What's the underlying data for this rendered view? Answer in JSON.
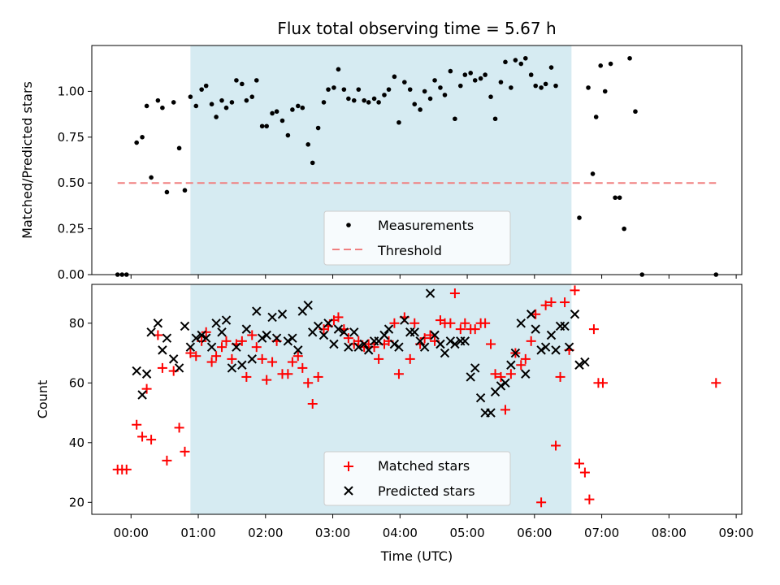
{
  "chart_data": {
    "type": "scatter",
    "title": "Flux total observing time = 5.67 h",
    "xlabel": "Time (UTC)",
    "x_ticks": [
      "00:00",
      "01:00",
      "02:00",
      "03:00",
      "04:00",
      "05:00",
      "06:00",
      "07:00",
      "08:00",
      "09:00"
    ],
    "xlim": [
      "-00:35",
      "09:05"
    ],
    "shaded_span": [
      "00:53",
      "06:33"
    ],
    "shade_color": "#add8e6",
    "top": {
      "ylabel": "Matched/Predicted stars",
      "ylim": [
        0,
        1.25
      ],
      "y_ticks": [
        "0.00",
        "0.25",
        "0.50",
        "0.75",
        "1.00"
      ],
      "legend": [
        "Measurements",
        "Threshold"
      ],
      "threshold": {
        "value": 0.5,
        "x_range": [
          "-00:12",
          "08:42"
        ],
        "color": "#f08080"
      },
      "points": [
        [
          "-00:12",
          0.0
        ],
        [
          "-00:08",
          0.0
        ],
        [
          "-00:04",
          0.0
        ],
        [
          "00:05",
          0.72
        ],
        [
          "00:10",
          0.75
        ],
        [
          "00:14",
          0.92
        ],
        [
          "00:18",
          0.53
        ],
        [
          "00:24",
          0.95
        ],
        [
          "00:28",
          0.91
        ],
        [
          "00:32",
          0.45
        ],
        [
          "00:38",
          0.94
        ],
        [
          "00:43",
          0.69
        ],
        [
          "00:48",
          0.46
        ],
        [
          "00:53",
          0.97
        ],
        [
          "00:58",
          0.92
        ],
        [
          "01:03",
          1.01
        ],
        [
          "01:07",
          1.03
        ],
        [
          "01:12",
          0.93
        ],
        [
          "01:16",
          0.86
        ],
        [
          "01:21",
          0.95
        ],
        [
          "01:25",
          0.91
        ],
        [
          "01:30",
          0.94
        ],
        [
          "01:34",
          1.06
        ],
        [
          "01:39",
          1.04
        ],
        [
          "01:43",
          0.95
        ],
        [
          "01:48",
          0.97
        ],
        [
          "01:52",
          1.06
        ],
        [
          "01:57",
          0.81
        ],
        [
          "02:01",
          0.81
        ],
        [
          "02:06",
          0.88
        ],
        [
          "02:10",
          0.89
        ],
        [
          "02:15",
          0.84
        ],
        [
          "02:20",
          0.76
        ],
        [
          "02:24",
          0.9
        ],
        [
          "02:29",
          0.92
        ],
        [
          "02:33",
          0.91
        ],
        [
          "02:38",
          0.71
        ],
        [
          "02:42",
          0.61
        ],
        [
          "02:47",
          0.8
        ],
        [
          "02:52",
          0.94
        ],
        [
          "02:56",
          1.01
        ],
        [
          "03:01",
          1.02
        ],
        [
          "03:05",
          1.12
        ],
        [
          "03:10",
          1.01
        ],
        [
          "03:14",
          0.96
        ],
        [
          "03:19",
          0.95
        ],
        [
          "03:23",
          1.01
        ],
        [
          "03:28",
          0.95
        ],
        [
          "03:32",
          0.94
        ],
        [
          "03:37",
          0.96
        ],
        [
          "03:41",
          0.94
        ],
        [
          "03:46",
          0.98
        ],
        [
          "03:50",
          1.01
        ],
        [
          "03:55",
          1.08
        ],
        [
          "03:59",
          0.83
        ],
        [
          "04:04",
          1.05
        ],
        [
          "04:09",
          1.01
        ],
        [
          "04:13",
          0.93
        ],
        [
          "04:18",
          0.9
        ],
        [
          "04:22",
          1.0
        ],
        [
          "04:27",
          0.96
        ],
        [
          "04:31",
          1.06
        ],
        [
          "04:36",
          1.02
        ],
        [
          "04:40",
          0.98
        ],
        [
          "04:45",
          1.11
        ],
        [
          "04:49",
          0.85
        ],
        [
          "04:54",
          1.03
        ],
        [
          "04:58",
          1.09
        ],
        [
          "05:03",
          1.1
        ],
        [
          "05:07",
          1.06
        ],
        [
          "05:12",
          1.07
        ],
        [
          "05:16",
          1.09
        ],
        [
          "05:21",
          0.97
        ],
        [
          "05:25",
          0.85
        ],
        [
          "05:30",
          1.05
        ],
        [
          "05:34",
          1.16
        ],
        [
          "05:39",
          1.02
        ],
        [
          "05:43",
          1.17
        ],
        [
          "05:48",
          1.15
        ],
        [
          "05:52",
          1.18
        ],
        [
          "05:57",
          1.09
        ],
        [
          "06:01",
          1.03
        ],
        [
          "06:06",
          1.02
        ],
        [
          "06:10",
          1.04
        ],
        [
          "06:15",
          1.13
        ],
        [
          "06:19",
          1.03
        ],
        [
          "06:40",
          0.31
        ],
        [
          "06:48",
          1.02
        ],
        [
          "06:52",
          0.55
        ],
        [
          "06:55",
          0.86
        ],
        [
          "06:59",
          1.14
        ],
        [
          "07:03",
          1.0
        ],
        [
          "07:08",
          1.15
        ],
        [
          "07:12",
          0.42
        ],
        [
          "07:16",
          0.42
        ],
        [
          "07:20",
          0.25
        ],
        [
          "07:25",
          1.18
        ],
        [
          "07:30",
          0.89
        ],
        [
          "07:36",
          0.0
        ],
        [
          "08:42",
          0.0
        ]
      ]
    },
    "bottom": {
      "ylabel": "Count",
      "ylim": [
        16,
        93
      ],
      "y_ticks": [
        "20",
        "40",
        "60",
        "80"
      ],
      "series": [
        {
          "name": "Matched stars",
          "marker": "+",
          "color": "#ff0000",
          "points": [
            [
              "-00:12",
              31
            ],
            [
              "-00:08",
              31
            ],
            [
              "-00:04",
              31
            ],
            [
              "00:05",
              46
            ],
            [
              "00:10",
              42
            ],
            [
              "00:14",
              58
            ],
            [
              "00:18",
              41
            ],
            [
              "00:24",
              76
            ],
            [
              "00:28",
              65
            ],
            [
              "00:32",
              34
            ],
            [
              "00:38",
              64
            ],
            [
              "00:43",
              45
            ],
            [
              "00:48",
              37
            ],
            [
              "00:53",
              70
            ],
            [
              "00:58",
              69
            ],
            [
              "01:03",
              74
            ],
            [
              "01:07",
              77
            ],
            [
              "01:12",
              67
            ],
            [
              "01:16",
              69
            ],
            [
              "01:21",
              72
            ],
            [
              "01:25",
              74
            ],
            [
              "01:30",
              68
            ],
            [
              "01:34",
              73
            ],
            [
              "01:39",
              74
            ],
            [
              "01:43",
              62
            ],
            [
              "01:48",
              76
            ],
            [
              "01:52",
              72
            ],
            [
              "01:57",
              68
            ],
            [
              "02:01",
              61
            ],
            [
              "02:06",
              67
            ],
            [
              "02:10",
              74
            ],
            [
              "02:15",
              63
            ],
            [
              "02:20",
              63
            ],
            [
              "02:24",
              67
            ],
            [
              "02:29",
              69
            ],
            [
              "02:33",
              65
            ],
            [
              "02:38",
              60
            ],
            [
              "02:42",
              53
            ],
            [
              "02:47",
              62
            ],
            [
              "02:52",
              78
            ],
            [
              "02:56",
              79
            ],
            [
              "03:01",
              81
            ],
            [
              "03:05",
              82
            ],
            [
              "03:10",
              78
            ],
            [
              "03:14",
              75
            ],
            [
              "03:19",
              73
            ],
            [
              "03:23",
              74
            ],
            [
              "03:28",
              72
            ],
            [
              "03:32",
              73
            ],
            [
              "03:37",
              72
            ],
            [
              "03:41",
              68
            ],
            [
              "03:46",
              73
            ],
            [
              "03:50",
              74
            ],
            [
              "03:55",
              80
            ],
            [
              "03:59",
              63
            ],
            [
              "04:04",
              82
            ],
            [
              "04:09",
              68
            ],
            [
              "04:13",
              80
            ],
            [
              "04:18",
              73
            ],
            [
              "04:22",
              75
            ],
            [
              "04:27",
              76
            ],
            [
              "04:31",
              74
            ],
            [
              "04:36",
              81
            ],
            [
              "04:40",
              80
            ],
            [
              "04:45",
              80
            ],
            [
              "04:49",
              90
            ],
            [
              "04:54",
              78
            ],
            [
              "04:58",
              80
            ],
            [
              "05:03",
              78
            ],
            [
              "05:07",
              78
            ],
            [
              "05:12",
              80
            ],
            [
              "05:16",
              80
            ],
            [
              "05:21",
              73
            ],
            [
              "05:25",
              63
            ],
            [
              "05:30",
              62
            ],
            [
              "05:34",
              51
            ],
            [
              "05:39",
              63
            ],
            [
              "05:43",
              70
            ],
            [
              "05:48",
              66
            ],
            [
              "05:52",
              68
            ],
            [
              "05:57",
              74
            ],
            [
              "06:01",
              83
            ],
            [
              "06:06",
              20
            ],
            [
              "06:10",
              86
            ],
            [
              "06:15",
              87
            ],
            [
              "06:19",
              39
            ],
            [
              "06:23",
              62
            ],
            [
              "06:27",
              87
            ],
            [
              "06:31",
              71
            ],
            [
              "06:36",
              91
            ],
            [
              "06:40",
              33
            ],
            [
              "06:45",
              30
            ],
            [
              "06:49",
              21
            ],
            [
              "06:53",
              78
            ],
            [
              "06:57",
              60
            ],
            [
              "07:01",
              60
            ],
            [
              "08:42",
              60
            ]
          ]
        },
        {
          "name": "Predicted stars",
          "marker": "x",
          "color": "#000000",
          "points": [
            [
              "00:05",
              64
            ],
            [
              "00:10",
              56
            ],
            [
              "00:14",
              63
            ],
            [
              "00:18",
              77
            ],
            [
              "00:24",
              80
            ],
            [
              "00:28",
              71
            ],
            [
              "00:32",
              75
            ],
            [
              "00:38",
              68
            ],
            [
              "00:43",
              65
            ],
            [
              "00:48",
              79
            ],
            [
              "00:53",
              72
            ],
            [
              "00:58",
              75
            ],
            [
              "01:03",
              76
            ],
            [
              "01:07",
              75
            ],
            [
              "01:12",
              72
            ],
            [
              "01:16",
              80
            ],
            [
              "01:21",
              77
            ],
            [
              "01:25",
              81
            ],
            [
              "01:30",
              65
            ],
            [
              "01:34",
              72
            ],
            [
              "01:39",
              66
            ],
            [
              "01:43",
              78
            ],
            [
              "01:48",
              68
            ],
            [
              "01:52",
              84
            ],
            [
              "01:57",
              75
            ],
            [
              "02:01",
              76
            ],
            [
              "02:06",
              82
            ],
            [
              "02:10",
              75
            ],
            [
              "02:15",
              83
            ],
            [
              "02:20",
              74
            ],
            [
              "02:24",
              75
            ],
            [
              "02:29",
              71
            ],
            [
              "02:33",
              84
            ],
            [
              "02:38",
              86
            ],
            [
              "02:42",
              77
            ],
            [
              "02:47",
              79
            ],
            [
              "02:52",
              76
            ],
            [
              "02:56",
              80
            ],
            [
              "03:01",
              73
            ],
            [
              "03:05",
              78
            ],
            [
              "03:10",
              77
            ],
            [
              "03:14",
              72
            ],
            [
              "03:19",
              77
            ],
            [
              "03:23",
              72
            ],
            [
              "03:28",
              73
            ],
            [
              "03:32",
              71
            ],
            [
              "03:37",
              74
            ],
            [
              "03:41",
              74
            ],
            [
              "03:46",
              76
            ],
            [
              "03:50",
              78
            ],
            [
              "03:55",
              73
            ],
            [
              "03:59",
              72
            ],
            [
              "04:04",
              81
            ],
            [
              "04:09",
              77
            ],
            [
              "04:13",
              77
            ],
            [
              "04:18",
              74
            ],
            [
              "04:22",
              72
            ],
            [
              "04:27",
              90
            ],
            [
              "04:31",
              76
            ],
            [
              "04:36",
              73
            ],
            [
              "04:40",
              70
            ],
            [
              "04:45",
              74
            ],
            [
              "04:49",
              73
            ],
            [
              "04:54",
              74
            ],
            [
              "04:58",
              74
            ],
            [
              "05:03",
              62
            ],
            [
              "05:07",
              65
            ],
            [
              "05:12",
              55
            ],
            [
              "05:16",
              50
            ],
            [
              "05:21",
              50
            ],
            [
              "05:25",
              57
            ],
            [
              "05:30",
              59
            ],
            [
              "05:34",
              60
            ],
            [
              "05:39",
              66
            ],
            [
              "05:43",
              70
            ],
            [
              "05:48",
              80
            ],
            [
              "05:52",
              63
            ],
            [
              "05:57",
              83
            ],
            [
              "06:01",
              78
            ],
            [
              "06:06",
              71
            ],
            [
              "06:10",
              72
            ],
            [
              "06:15",
              76
            ],
            [
              "06:19",
              71
            ],
            [
              "06:23",
              79
            ],
            [
              "06:27",
              79
            ],
            [
              "06:31",
              72
            ],
            [
              "06:36",
              83
            ],
            [
              "06:40",
              66
            ],
            [
              "06:45",
              67
            ]
          ]
        }
      ]
    }
  }
}
